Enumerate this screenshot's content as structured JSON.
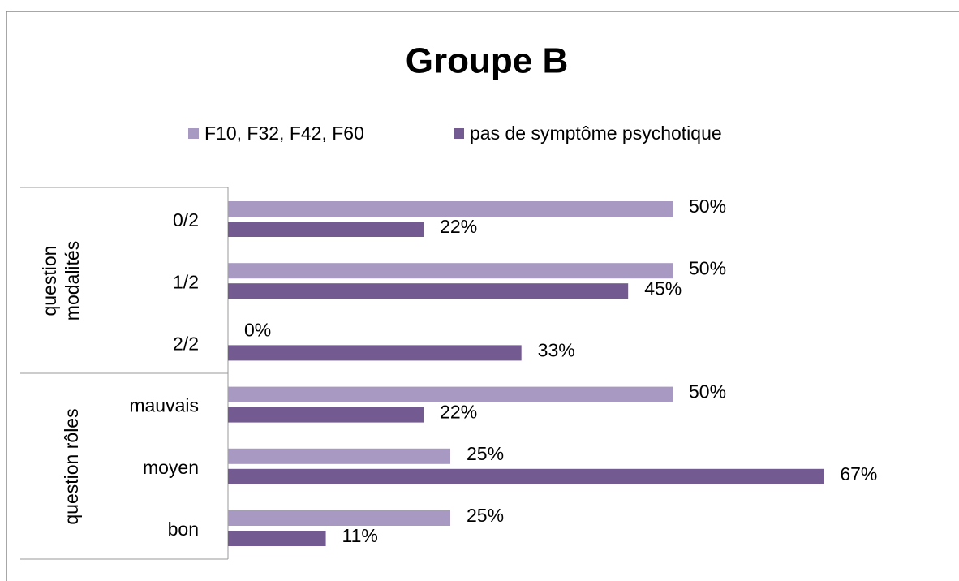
{
  "chart_data": {
    "type": "bar",
    "orientation": "horizontal",
    "title": "Groupe B",
    "groups": [
      {
        "name": "question modalités",
        "categories": [
          "0/2",
          "1/2",
          "2/2"
        ]
      },
      {
        "name": "question rôles",
        "categories": [
          "mauvais",
          "moyen",
          "bon"
        ]
      }
    ],
    "series": [
      {
        "name": "F10, F32, F42, F60",
        "color": "#a899c2",
        "values": [
          50,
          50,
          0,
          50,
          25,
          25
        ],
        "value_labels": [
          "50%",
          "50%",
          "0%",
          "50%",
          "25%",
          "25%"
        ]
      },
      {
        "name": "pas de symptôme psychotique",
        "color": "#735a91",
        "values": [
          22,
          45,
          33,
          22,
          67,
          11
        ],
        "value_labels": [
          "22%",
          "45%",
          "33%",
          "22%",
          "67%",
          "11%"
        ]
      }
    ]
  }
}
